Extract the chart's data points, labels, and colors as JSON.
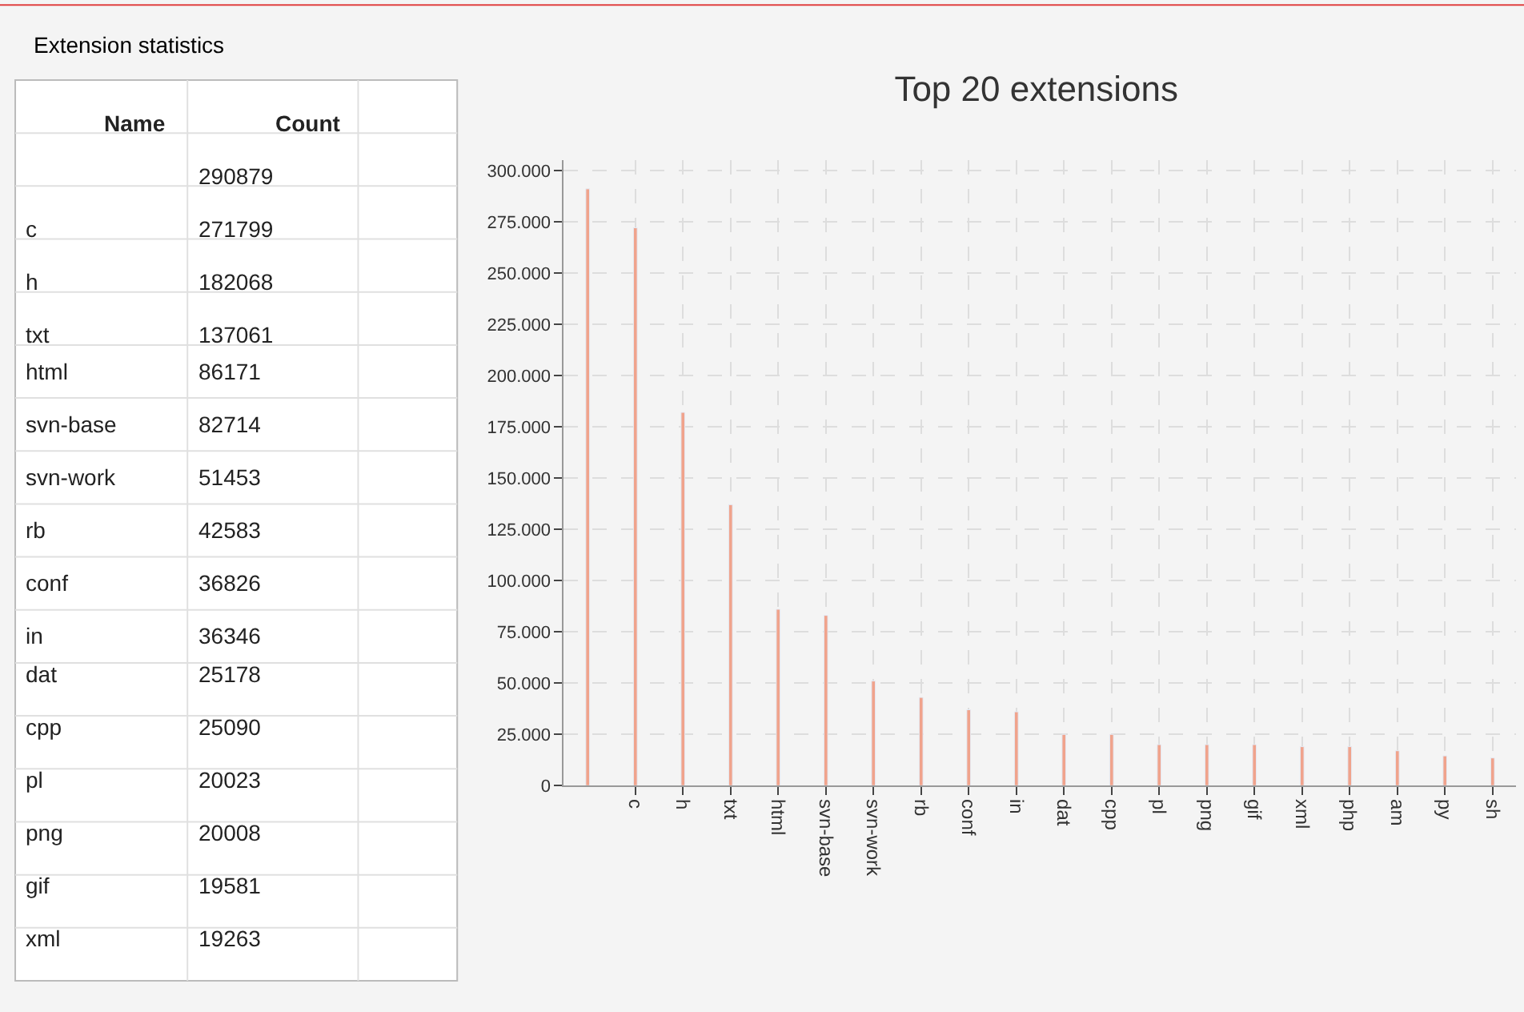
{
  "chart_data": [
    {
      "type": "other",
      "title": "Extension statistics",
      "xlabel": "Name",
      "ylabel": "Count",
      "categories": [
        null,
        "c",
        "h",
        "txt",
        "html",
        "svn-base",
        "svn-work",
        "rb",
        "conf",
        "in",
        "dat",
        "cpp",
        "pl",
        "png",
        "gif",
        "xml"
      ],
      "values": [
        290879,
        271799,
        182068,
        137061,
        86171,
        82714,
        51453,
        42583,
        36826,
        36346,
        25178,
        25090,
        20023,
        20008,
        19581,
        19263
      ],
      "data_labels": true
    },
    {
      "type": "bar",
      "title": "Top 20 extensions",
      "categories": [
        null,
        "c",
        "h",
        "txt",
        "html",
        "svn-base",
        "svn-work",
        "rb",
        "conf",
        "in",
        "dat",
        "cpp",
        "pl",
        "png",
        "gif",
        "xml",
        "php",
        "am",
        "py",
        "sh"
      ],
      "values": [
        291000,
        272000,
        182000,
        137000,
        86000,
        83000,
        51000,
        43000,
        37000,
        36000,
        25000,
        25000,
        20000,
        20000,
        20000,
        19000,
        19000,
        17000,
        14500,
        13500
      ],
      "color": "#f0a38c",
      "ylim": [
        0,
        305000
      ],
      "yticks": [
        0,
        {
          "value": 25000,
          "label": "25.000"
        },
        {
          "value": 50000,
          "label": "50.000"
        },
        {
          "value": 75000,
          "label": "75.000"
        },
        {
          "value": 100000,
          "label": "100.000"
        },
        {
          "value": 125000,
          "label": "125.000"
        },
        {
          "value": 150000,
          "label": "150.000"
        },
        {
          "value": 175000,
          "label": "175.000"
        },
        {
          "value": 200000,
          "label": "200.000"
        },
        {
          "value": 225000,
          "label": "225.000"
        },
        {
          "value": 250000,
          "label": "250.000"
        },
        {
          "value": 275000,
          "label": "275.000"
        },
        {
          "value": 300000,
          "label": "300.000"
        }
      ],
      "grid": true
    }
  ]
}
